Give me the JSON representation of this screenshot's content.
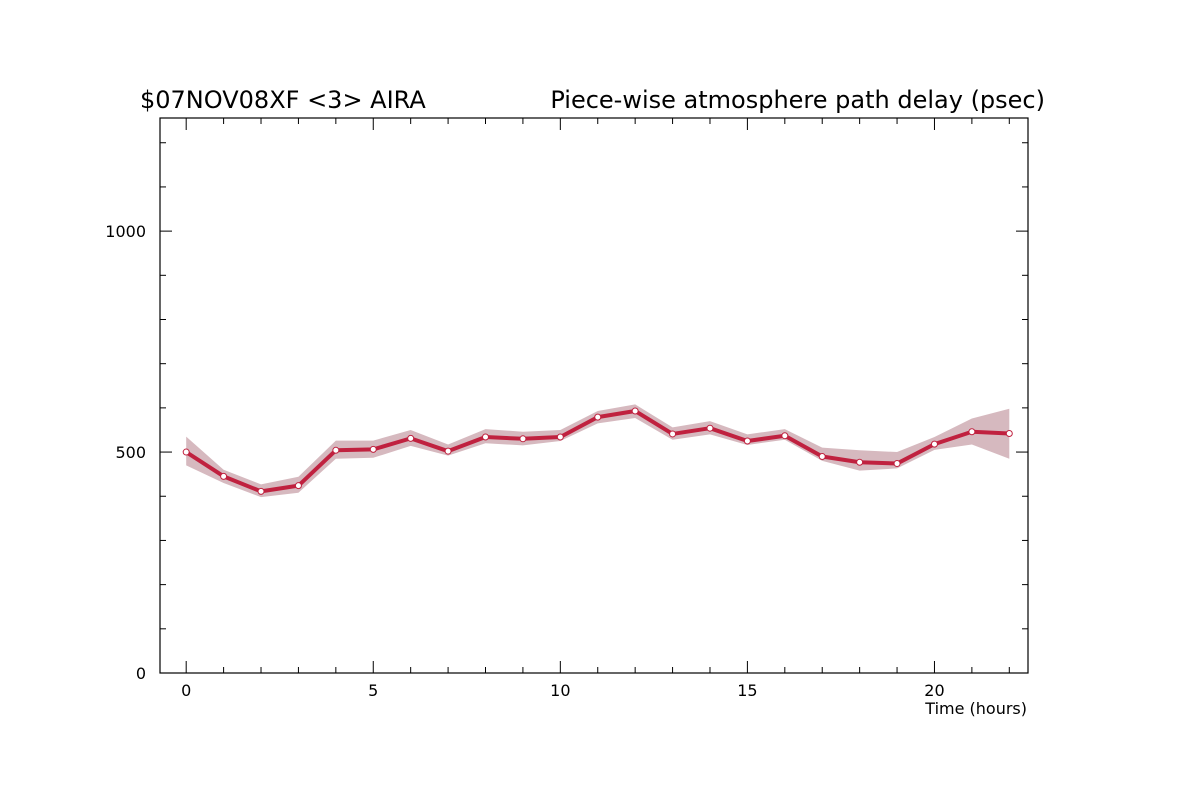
{
  "chart_data": {
    "type": "line",
    "title_left": "$07NOV08XF <3>  AIRA",
    "title_right": "Piece-wise atmosphere path delay (psec)",
    "xlabel": "Time (hours)",
    "ylabel": "",
    "xlim": [
      -0.7,
      22.5
    ],
    "ylim": [
      0,
      1256
    ],
    "x_ticks": [
      0,
      5,
      10,
      15,
      20
    ],
    "y_ticks": [
      0,
      500,
      1000
    ],
    "grid": false,
    "series": [
      {
        "x": [
          0,
          1,
          2,
          3,
          4,
          5,
          6,
          7,
          8,
          9,
          10,
          11,
          12,
          13,
          14,
          15,
          16,
          17,
          18,
          19,
          20,
          21,
          22
        ],
        "y": [
          500,
          445,
          411,
          424,
          504,
          506,
          531,
          502,
          534,
          530,
          534,
          579,
          593,
          541,
          554,
          525,
          537,
          490,
          477,
          474,
          518,
          546,
          542
        ],
        "band_lower": [
          470,
          430,
          398,
          408,
          485,
          487,
          514,
          492,
          520,
          515,
          525,
          565,
          577,
          528,
          540,
          516,
          528,
          480,
          458,
          463,
          505,
          517,
          485
        ],
        "band_upper": [
          535,
          460,
          427,
          444,
          526,
          526,
          550,
          517,
          552,
          546,
          550,
          593,
          608,
          556,
          570,
          540,
          552,
          510,
          504,
          500,
          534,
          576,
          598
        ],
        "line_color": "#c0213f",
        "band_color": "#d6b9bf"
      }
    ]
  }
}
